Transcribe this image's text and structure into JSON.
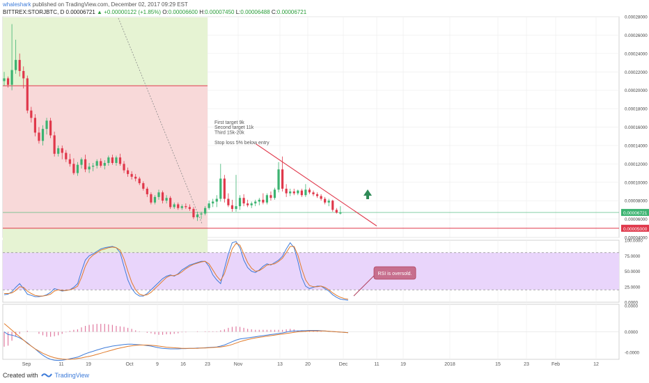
{
  "header": {
    "user": "whaleshark",
    "published": "published on TradingView.com, December 02, 2017 09:29 EST",
    "symbol_line": "BITTREX:STORJBTC, D",
    "price": "0.00006721",
    "change": "▲ +0.00000122 (+1.85%)",
    "o_label": "O:",
    "o_value": "0.00006600",
    "h_label": "H:",
    "h_value": "0.00007450",
    "l_label": "L:",
    "l_value": "0.00006488",
    "c_label": "C:",
    "c_value": "0.00006721"
  },
  "footer": {
    "created_with": "Created with",
    "brand": "TradingView"
  },
  "colors": {
    "up": "#3cb371",
    "down": "#e0384b",
    "ema": "#e07a2a",
    "rsi_k": "#3d7bd9",
    "rsi_d": "#e07a2a",
    "rsi_band": "#e9d5fb",
    "zone_green": "#e6f3d3",
    "zone_red": "#f8d9d9"
  },
  "chart_data": [
    {
      "type": "candlestick",
      "title": "",
      "x_ticks": [
        "Sep",
        "11",
        "19",
        "Oct",
        "9",
        "16",
        "23",
        "Nov",
        "13",
        "20",
        "Dec",
        "11",
        "19",
        "2018",
        "15",
        "23",
        "Feb",
        "12"
      ],
      "y_ticks": [
        "0.00028000",
        "0.00026000",
        "0.00024000",
        "0.00022000",
        "0.00020000",
        "0.00018000",
        "0.00016000",
        "0.00014000",
        "0.00012000",
        "0.00010000",
        "0.00008000",
        "0.00006000",
        "0.00004000"
      ],
      "ylim": [
        4e-05,
        0.00028
      ],
      "last_price_label": "0.00006721",
      "stop_label": "0.00005000",
      "annotation_lines": [
        "First target 9k",
        "Second target 11k",
        "Third 15k-20k",
        "",
        "Stop loss 5% below entry"
      ],
      "candles": [
        [
          0.00021,
          0.00022,
          0.000205,
          0.000213
        ],
        [
          0.000213,
          0.000215,
          0.000203,
          0.000206
        ],
        [
          0.000206,
          0.000272,
          0.0002,
          0.000222
        ],
        [
          0.000222,
          0.000255,
          0.000218,
          0.000233
        ],
        [
          0.000233,
          0.00024,
          0.000215,
          0.000221
        ],
        [
          0.000221,
          0.000226,
          0.000202,
          0.000213
        ],
        [
          0.000213,
          0.000216,
          0.000175,
          0.000178
        ],
        [
          0.000178,
          0.000182,
          0.000165,
          0.00017
        ],
        [
          0.00017,
          0.000174,
          0.00015,
          0.000154
        ],
        [
          0.000154,
          0.00016,
          0.000142,
          0.000145
        ],
        [
          0.000145,
          0.000162,
          0.00014,
          0.000158
        ],
        [
          0.000158,
          0.00017,
          0.000152,
          0.000167
        ],
        [
          0.000167,
          0.00017,
          0.000148,
          0.000151
        ],
        [
          0.000151,
          0.000155,
          0.000128,
          0.000131
        ],
        [
          0.000131,
          0.00014,
          0.000128,
          0.000137
        ],
        [
          0.000137,
          0.00014,
          0.000125,
          0.000132
        ],
        [
          0.000132,
          0.000135,
          0.000122,
          0.000125
        ],
        [
          0.000125,
          0.000131,
          0.000117,
          0.00012
        ],
        [
          0.00012,
          0.000126,
          0.000108,
          0.00011
        ],
        [
          0.00011,
          0.000122,
          0.000107,
          0.000119
        ],
        [
          0.000119,
          0.000127,
          0.000115,
          0.000125
        ],
        [
          0.000125,
          0.00013,
          0.000111,
          0.000114
        ],
        [
          0.000114,
          0.000121,
          0.00011,
          0.000117
        ],
        [
          0.000117,
          0.000121,
          0.000112,
          0.000118
        ],
        [
          0.000118,
          0.000125,
          0.000115,
          0.000123
        ],
        [
          0.000123,
          0.000126,
          0.000116,
          0.000118
        ],
        [
          0.000118,
          0.000124,
          0.000114,
          0.000121
        ],
        [
          0.000121,
          0.000129,
          0.000118,
          0.000127
        ],
        [
          0.000127,
          0.00013,
          0.000119,
          0.000121
        ],
        [
          0.000121,
          0.000129,
          0.000118,
          0.000127
        ],
        [
          0.000127,
          0.000131,
          0.000118,
          0.00012
        ],
        [
          0.00012,
          0.000123,
          0.00011,
          0.000113
        ],
        [
          0.000113,
          0.000116,
          0.000106,
          0.000109
        ],
        [
          0.000109,
          0.000112,
          0.000103,
          0.000106
        ],
        [
          0.000106,
          0.000109,
          0.000101,
          0.000104
        ],
        [
          0.000104,
          0.000106,
          9.7e-05,
          9.9e-05
        ],
        [
          9.9e-05,
          0.000101,
          9.1e-05,
          9.3e-05
        ],
        [
          9.3e-05,
          9.5e-05,
          8.4e-05,
          8.7e-05
        ],
        [
          8.7e-05,
          8.9e-05,
          7.6e-05,
          7.8e-05
        ],
        [
          7.8e-05,
          8.6e-05,
          7.6e-05,
          8.4e-05
        ],
        [
          8.4e-05,
          9.2e-05,
          8.1e-05,
          8.9e-05
        ],
        [
          8.9e-05,
          9.1e-05,
          7.7e-05,
          8e-05
        ],
        [
          8e-05,
          8.6e-05,
          7.7e-05,
          8.3e-05
        ],
        [
          8.3e-05,
          8.5e-05,
          7.1e-05,
          7.3e-05
        ],
        [
          7.3e-05,
          7.8e-05,
          7.1e-05,
          7.6e-05
        ],
        [
          7.6e-05,
          7.8e-05,
          7e-05,
          7.2e-05
        ],
        [
          7.2e-05,
          7.6e-05,
          7e-05,
          7.4e-05
        ],
        [
          7.4e-05,
          7.7e-05,
          7.1e-05,
          7.3e-05
        ],
        [
          7.3e-05,
          7.6e-05,
          6.9e-05,
          7.1e-05
        ],
        [
          7.1e-05,
          7.3e-05,
          6e-05,
          6.2e-05
        ],
        [
          6.2e-05,
          6.8e-05,
          5.8e-05,
          6.5e-05
        ],
        [
          6.5e-05,
          6.8e-05,
          6e-05,
          6.6e-05
        ],
        [
          6.6e-05,
          7.4e-05,
          6.4e-05,
          7.2e-05
        ],
        [
          7.2e-05,
          8e-05,
          7e-05,
          7.7e-05
        ],
        [
          7.7e-05,
          8.2e-05,
          7.3e-05,
          7.9e-05
        ],
        [
          7.9e-05,
          8.6e-05,
          7.3e-05,
          8.2e-05
        ],
        [
          8.2e-05,
          0.00012,
          7.9e-05,
          0.000104
        ],
        [
          0.000104,
          0.000108,
          7.8e-05,
          8.2e-05
        ],
        [
          8.2e-05,
          8.8e-05,
          7.3e-05,
          7.5e-05
        ],
        [
          7.5e-05,
          8.1e-05,
          6.8e-05,
          7.1e-05
        ],
        [
          7.1e-05,
          0.000108,
          6.8e-05,
          7.4e-05
        ],
        [
          7.4e-05,
          8.6e-05,
          7e-05,
          8.3e-05
        ],
        [
          8.3e-05,
          8.7e-05,
          7.4e-05,
          7.7e-05
        ],
        [
          7.7e-05,
          8.1e-05,
          7.3e-05,
          7.5e-05
        ],
        [
          7.5e-05,
          7.9e-05,
          7.2e-05,
          7.7e-05
        ],
        [
          7.7e-05,
          8.1e-05,
          7.4e-05,
          7.9e-05
        ],
        [
          7.9e-05,
          8.3e-05,
          7.5e-05,
          8.1e-05
        ],
        [
          8.1e-05,
          8.8e-05,
          7.6e-05,
          7.8e-05
        ],
        [
          7.8e-05,
          8.8e-05,
          7.6e-05,
          8.6e-05
        ],
        [
          8.6e-05,
          9e-05,
          8e-05,
          8.3e-05
        ],
        [
          8.3e-05,
          9.4e-05,
          8.1e-05,
          9.2e-05
        ],
        [
          9.2e-05,
          0.000122,
          8.9e-05,
          0.000114
        ],
        [
          0.000114,
          0.000128,
          9e-05,
          9.3e-05
        ],
        [
          9.3e-05,
          9.8e-05,
          8.4e-05,
          8.8e-05
        ],
        [
          8.8e-05,
          9.3e-05,
          8.5e-05,
          9e-05
        ],
        [
          9e-05,
          9.3e-05,
          8.6e-05,
          8.8e-05
        ],
        [
          8.8e-05,
          9.2e-05,
          8.6e-05,
          9.1e-05
        ],
        [
          9.1e-05,
          9.3e-05,
          8.4e-05,
          8.6e-05
        ],
        [
          8.6e-05,
          9.8e-05,
          8.4e-05,
          9.2e-05
        ],
        [
          9.2e-05,
          9.4e-05,
          8.7e-05,
          8.9e-05
        ],
        [
          8.9e-05,
          9.1e-05,
          8.5e-05,
          8.7e-05
        ],
        [
          8.7e-05,
          8.9e-05,
          8.3e-05,
          8.5e-05
        ],
        [
          8.5e-05,
          8.7e-05,
          8e-05,
          8.2e-05
        ],
        [
          8.2e-05,
          8.4e-05,
          7.6e-05,
          7.8e-05
        ],
        [
          7.8e-05,
          8.2e-05,
          7.4e-05,
          8e-05
        ],
        [
          8e-05,
          8.1e-05,
          6.8e-05,
          7e-05
        ],
        [
          7e-05,
          7.2e-05,
          6.6e-05,
          6.7e-05
        ],
        [
          6.6e-05,
          7.4e-05,
          6.5e-05,
          6.7e-05
        ]
      ]
    },
    {
      "type": "line",
      "title": "",
      "y_ticks": [
        "100.0000",
        "75.0000",
        "50.0000",
        "25.0000",
        "0.0000"
      ],
      "ylim": [
        0,
        100
      ],
      "band": [
        20,
        80
      ],
      "annotation": "RSI is oversold.",
      "series": [
        {
          "values": [
            12,
            13,
            17,
            24,
            30,
            22,
            13,
            11,
            9,
            9,
            10,
            12,
            16,
            22,
            20,
            18,
            19,
            20,
            24,
            30,
            50,
            68,
            75,
            78,
            82,
            86,
            88,
            89,
            90,
            88,
            80,
            58,
            36,
            22,
            14,
            10,
            10,
            14,
            20,
            26,
            32,
            38,
            42,
            44,
            42,
            46,
            52,
            56,
            60,
            62,
            64,
            66,
            66,
            58,
            44,
            36,
            30,
            54,
            78,
            96,
            98,
            88,
            68,
            56,
            50,
            48,
            52,
            58,
            62,
            60,
            64,
            68,
            74,
            86,
            96,
            88,
            66,
            40,
            26,
            22,
            24,
            26,
            26,
            22,
            18,
            12,
            8,
            5,
            4,
            3
          ]
        },
        {
          "values": [
            14,
            14,
            15,
            19,
            25,
            24,
            18,
            14,
            11,
            10,
            10,
            11,
            13,
            18,
            20,
            19,
            19,
            20,
            22,
            26,
            40,
            58,
            70,
            76,
            80,
            84,
            86,
            88,
            89,
            88,
            84,
            70,
            50,
            32,
            20,
            13,
            11,
            12,
            16,
            22,
            28,
            34,
            40,
            43,
            43,
            45,
            49,
            54,
            58,
            61,
            63,
            65,
            66,
            62,
            52,
            42,
            35,
            46,
            66,
            86,
            95,
            92,
            78,
            64,
            55,
            50,
            51,
            55,
            60,
            61,
            62,
            66,
            71,
            80,
            90,
            90,
            76,
            54,
            36,
            27,
            25,
            25,
            26,
            24,
            20,
            15,
            11,
            8,
            6,
            5
          ]
        }
      ]
    },
    {
      "type": "line",
      "title": "",
      "y_ticks": [
        "0.0000",
        "0.0000",
        "-0.0000"
      ],
      "ylim": [
        -1,
        1
      ],
      "series": [
        {
          "values": [
            0.0,
            -0.1,
            -0.12,
            -0.16,
            -0.22,
            -0.3,
            -0.4,
            -0.52,
            -0.62,
            -0.74,
            -0.85,
            -0.94,
            -1.0,
            -1.03,
            -1.04,
            -1.03,
            -1.01,
            -0.98,
            -0.95,
            -0.92,
            -0.86,
            -0.8,
            -0.75,
            -0.71,
            -0.66,
            -0.62,
            -0.58,
            -0.55,
            -0.52,
            -0.5,
            -0.48,
            -0.46,
            -0.45,
            -0.45,
            -0.46,
            -0.47,
            -0.48,
            -0.5,
            -0.52,
            -0.55,
            -0.58,
            -0.6,
            -0.61,
            -0.62,
            -0.62,
            -0.62,
            -0.61,
            -0.61,
            -0.6,
            -0.6,
            -0.59,
            -0.59,
            -0.58,
            -0.57,
            -0.56,
            -0.55,
            -0.52,
            -0.48,
            -0.42,
            -0.36,
            -0.3,
            -0.26,
            -0.24,
            -0.22,
            -0.2,
            -0.18,
            -0.16,
            -0.14,
            -0.12,
            -0.1,
            -0.08,
            -0.06,
            -0.04,
            -0.01,
            0.02,
            0.03,
            0.03,
            0.04,
            0.04,
            0.05,
            0.05,
            0.05,
            0.04,
            0.03,
            0.02,
            0.01,
            0.0,
            -0.01,
            -0.02,
            -0.03
          ]
        },
        {
          "values": [
            0.3,
            0.18,
            0.06,
            -0.06,
            -0.18,
            -0.3,
            -0.42,
            -0.52,
            -0.62,
            -0.7,
            -0.78,
            -0.84,
            -0.9,
            -0.94,
            -0.97,
            -0.99,
            -1.0,
            -1.0,
            -0.99,
            -0.97,
            -0.95,
            -0.92,
            -0.89,
            -0.86,
            -0.82,
            -0.78,
            -0.74,
            -0.7,
            -0.66,
            -0.62,
            -0.59,
            -0.56,
            -0.53,
            -0.51,
            -0.49,
            -0.48,
            -0.48,
            -0.48,
            -0.49,
            -0.5,
            -0.52,
            -0.54,
            -0.56,
            -0.57,
            -0.58,
            -0.59,
            -0.6,
            -0.6,
            -0.6,
            -0.6,
            -0.6,
            -0.59,
            -0.59,
            -0.58,
            -0.57,
            -0.56,
            -0.55,
            -0.53,
            -0.5,
            -0.46,
            -0.41,
            -0.36,
            -0.32,
            -0.28,
            -0.25,
            -0.22,
            -0.2,
            -0.18,
            -0.16,
            -0.14,
            -0.12,
            -0.1,
            -0.08,
            -0.06,
            -0.04,
            -0.02,
            0.0,
            0.01,
            0.02,
            0.03,
            0.03,
            0.03,
            0.03,
            0.03,
            0.02,
            0.01,
            0.0,
            -0.01,
            -0.02,
            -0.03
          ]
        }
      ]
    }
  ]
}
